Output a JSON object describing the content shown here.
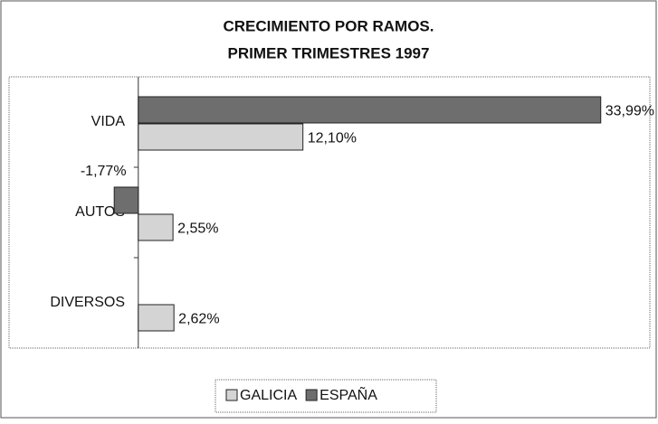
{
  "chart_data": {
    "type": "bar",
    "orientation": "horizontal",
    "title": [
      "CRECIMIENTO POR RAMOS.",
      "PRIMER TRIMESTRES 1997"
    ],
    "categories": [
      "VIDA",
      "AUTOS",
      "DIVERSOS"
    ],
    "series": [
      {
        "name": "ESPAÑA",
        "color": "#6e6e6e",
        "values": [
          33.99,
          -1.77,
          null
        ],
        "value_labels": [
          "33,99%",
          "-1,77%",
          null
        ]
      },
      {
        "name": "GALICIA",
        "color": "#d4d4d4",
        "values": [
          12.1,
          2.55,
          2.62
        ],
        "value_labels": [
          "12,10%",
          "2,55%",
          "2,62%"
        ]
      }
    ],
    "legend_order": [
      1,
      0
    ],
    "xlim": [
      -9.5,
      37.6
    ],
    "legend": "bottom"
  }
}
